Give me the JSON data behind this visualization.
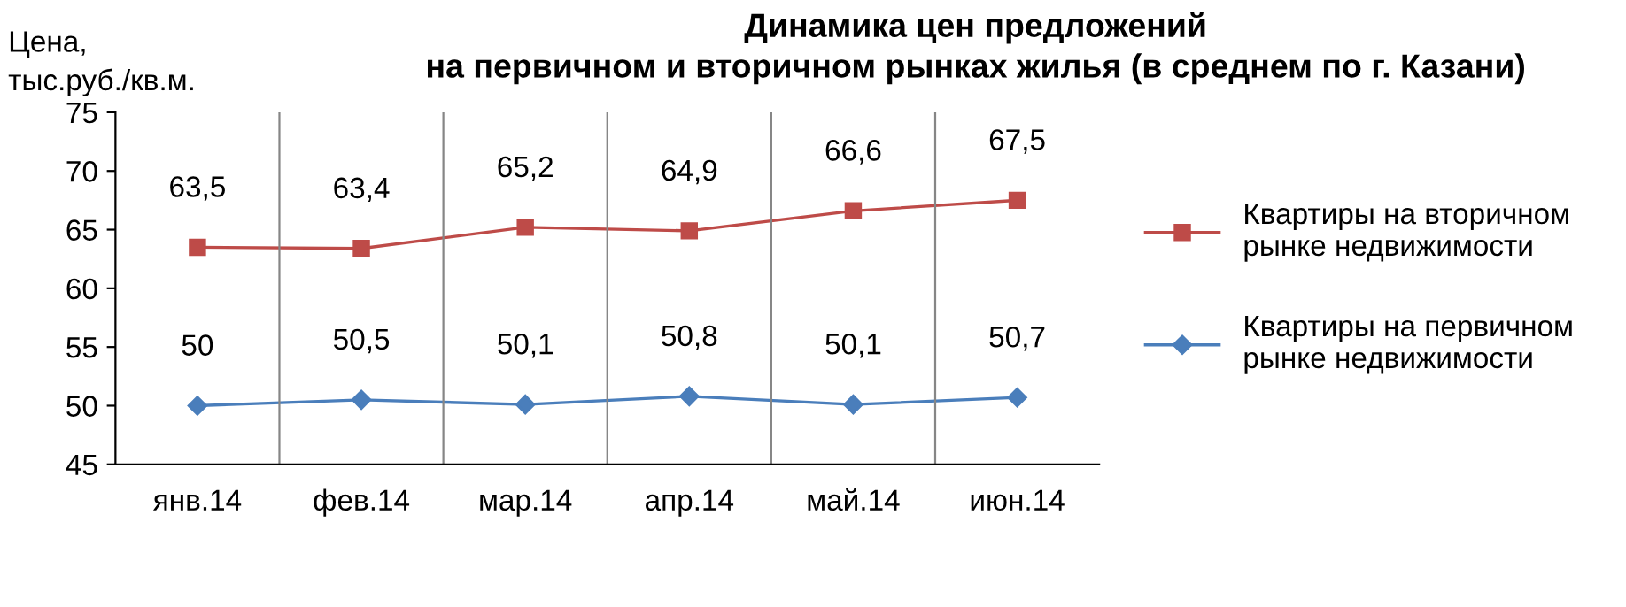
{
  "chart_data": {
    "type": "line",
    "title": "Динамика цен предложений\nна первичном и вторичном рынках жилья (в среднем по г. Казани)",
    "ylabel": "Цена,\nтыс.руб./кв.м.",
    "categories": [
      "янв.14",
      "фев.14",
      "мар.14",
      "апр.14",
      "май.14",
      "июн.14"
    ],
    "series": [
      {
        "name": "Квартиры на вторичном\nрынке недвижимости",
        "color": "#be4b48",
        "marker": "square",
        "values": [
          63.5,
          63.4,
          65.2,
          64.9,
          66.6,
          67.5
        ],
        "value_labels": [
          "63,5",
          "63,4",
          "65,2",
          "64,9",
          "66,6",
          "67,5"
        ]
      },
      {
        "name": "Квартиры на первичном\nрынке недвижимости",
        "color": "#4a7ebb",
        "marker": "diamond",
        "values": [
          50,
          50.5,
          50.1,
          50.8,
          50.1,
          50.7
        ],
        "value_labels": [
          "50",
          "50,5",
          "50,1",
          "50,8",
          "50,1",
          "50,7"
        ]
      }
    ],
    "ylim": [
      45,
      75
    ],
    "yticks": [
      45,
      50,
      55,
      60,
      65,
      70,
      75
    ],
    "grid": "x",
    "legend": "right",
    "line_style": "solid"
  }
}
